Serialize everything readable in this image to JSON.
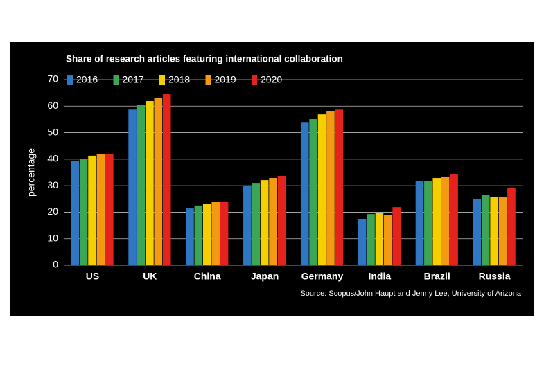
{
  "chart_data": {
    "type": "bar",
    "title": "Share of research articles featuring international collaboration",
    "y_label": "percentage",
    "source": "Source: Scopus/John Haupt and Jenny Lee, University of Arizona",
    "categories": [
      "US",
      "UK",
      "China",
      "Japan",
      "Germany",
      "India",
      "Brazil",
      "Russia"
    ],
    "series": [
      {
        "name": "2016",
        "color": "#2f77c2",
        "values": [
          39.2,
          58.7,
          21.4,
          30.0,
          54.0,
          17.5,
          31.8,
          25.0
        ]
      },
      {
        "name": "2017",
        "color": "#3ba655",
        "values": [
          40.2,
          60.6,
          22.5,
          30.8,
          55.1,
          19.3,
          31.8,
          26.4
        ]
      },
      {
        "name": "2018",
        "color": "#f6cf00",
        "values": [
          41.3,
          61.9,
          23.2,
          32.1,
          56.9,
          19.8,
          32.9,
          25.6
        ]
      },
      {
        "name": "2019",
        "color": "#f39a14",
        "values": [
          42.0,
          63.2,
          23.8,
          32.9,
          58.0,
          18.8,
          33.4,
          25.6
        ]
      },
      {
        "name": "2020",
        "color": "#e3231c",
        "values": [
          41.8,
          64.5,
          24.0,
          33.7,
          58.7,
          21.9,
          34.2,
          29.2
        ]
      }
    ],
    "ylim": [
      0,
      70
    ],
    "yticks": [
      0,
      10,
      20,
      30,
      40,
      50,
      60,
      70
    ],
    "grid": true,
    "legend": "top-left"
  }
}
